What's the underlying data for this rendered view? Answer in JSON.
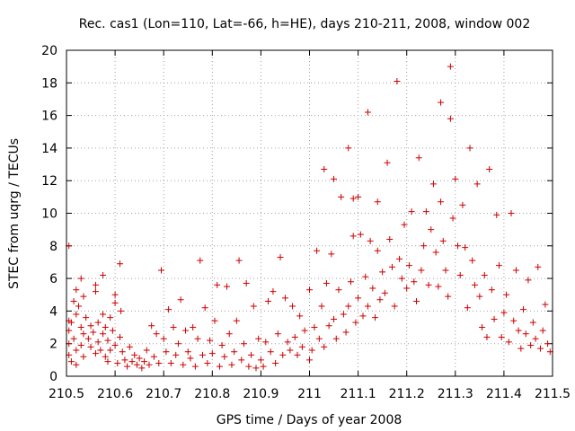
{
  "chart_data": {
    "type": "scatter",
    "title": "Rec. cas1 (Lon=110, Lat=-66, h=HE), days 210-211, 2008, window 002",
    "xlabel": "GPS time / Days of year 2008",
    "ylabel": "STEC from uqrg / TECUs",
    "xlim": [
      210.5,
      211.5
    ],
    "ylim": [
      0,
      20
    ],
    "xticks": [
      210.5,
      210.6,
      210.7,
      210.8,
      210.9,
      211,
      211.1,
      211.2,
      211.3,
      211.4,
      211.5
    ],
    "xtick_labels": [
      "210.5",
      "210.6",
      "210.7",
      "210.8",
      "210.9",
      "211",
      "211.1",
      "211.2",
      "211.3",
      "211.4",
      "211.5"
    ],
    "yticks": [
      0,
      2,
      4,
      6,
      8,
      10,
      12,
      14,
      16,
      18,
      20
    ],
    "ytick_labels": [
      "0",
      "2",
      "4",
      "6",
      "8",
      "10",
      "12",
      "14",
      "16",
      "18",
      "20"
    ],
    "grid": true,
    "marker": "plus",
    "color": "#cc0000",
    "series": [
      {
        "points": [
          [
            210.505,
            8.0
          ],
          [
            210.505,
            3.4
          ],
          [
            210.505,
            2.8
          ],
          [
            210.505,
            2.0
          ],
          [
            210.505,
            1.3
          ],
          [
            210.51,
            3.3
          ],
          [
            210.51,
            0.9
          ],
          [
            210.515,
            4.6
          ],
          [
            210.515,
            2.3
          ],
          [
            210.52,
            5.3
          ],
          [
            210.52,
            3.8
          ],
          [
            210.52,
            1.6
          ],
          [
            210.52,
            0.7
          ],
          [
            210.525,
            4.3
          ],
          [
            210.53,
            6.0
          ],
          [
            210.53,
            3.0
          ],
          [
            210.53,
            1.9
          ],
          [
            210.535,
            4.9
          ],
          [
            210.535,
            2.6
          ],
          [
            210.535,
            1.2
          ],
          [
            210.54,
            3.6
          ],
          [
            210.545,
            2.3
          ],
          [
            210.55,
            3.1
          ],
          [
            210.55,
            1.8
          ],
          [
            210.555,
            2.7
          ],
          [
            210.56,
            5.6
          ],
          [
            210.56,
            5.2
          ],
          [
            210.56,
            1.4
          ],
          [
            210.565,
            2.1
          ],
          [
            210.565,
            3.3
          ],
          [
            210.57,
            1.6
          ],
          [
            210.575,
            6.2
          ],
          [
            210.575,
            3.8
          ],
          [
            210.575,
            2.6
          ],
          [
            210.58,
            1.2
          ],
          [
            210.58,
            3.0
          ],
          [
            210.585,
            2.2
          ],
          [
            210.585,
            0.9
          ],
          [
            210.59,
            3.6
          ],
          [
            210.59,
            1.6
          ],
          [
            210.595,
            2.8
          ],
          [
            210.6,
            5.0
          ],
          [
            210.6,
            4.5
          ],
          [
            210.6,
            1.9
          ],
          [
            210.605,
            0.8
          ],
          [
            210.61,
            2.4
          ],
          [
            210.61,
            6.9
          ],
          [
            210.612,
            4.0
          ],
          [
            210.615,
            1.5
          ],
          [
            210.62,
            1.0
          ],
          [
            210.625,
            0.6
          ],
          [
            210.63,
            1.8
          ],
          [
            210.635,
            0.9
          ],
          [
            210.64,
            1.3
          ],
          [
            210.645,
            0.7
          ],
          [
            210.65,
            1.1
          ],
          [
            210.655,
            0.5
          ],
          [
            210.66,
            0.9
          ],
          [
            210.665,
            1.6
          ],
          [
            210.67,
            0.7
          ],
          [
            210.675,
            3.1
          ],
          [
            210.68,
            1.2
          ],
          [
            210.685,
            2.6
          ],
          [
            210.69,
            0.8
          ],
          [
            210.695,
            6.5
          ],
          [
            210.7,
            2.3
          ],
          [
            210.705,
            1.5
          ],
          [
            210.71,
            4.1
          ],
          [
            210.715,
            0.8
          ],
          [
            210.72,
            3.0
          ],
          [
            210.725,
            1.3
          ],
          [
            210.73,
            2.0
          ],
          [
            210.735,
            4.7
          ],
          [
            210.74,
            0.7
          ],
          [
            210.745,
            2.8
          ],
          [
            210.75,
            1.5
          ],
          [
            210.755,
            1.1
          ],
          [
            210.76,
            3.0
          ],
          [
            210.765,
            0.6
          ],
          [
            210.77,
            2.3
          ],
          [
            210.775,
            7.1
          ],
          [
            210.78,
            1.3
          ],
          [
            210.785,
            4.2
          ],
          [
            210.79,
            0.8
          ],
          [
            210.795,
            2.2
          ],
          [
            210.8,
            1.4
          ],
          [
            210.805,
            3.4
          ],
          [
            210.81,
            5.6
          ],
          [
            210.815,
            0.6
          ],
          [
            210.82,
            1.9
          ],
          [
            210.825,
            1.2
          ],
          [
            210.83,
            5.5
          ],
          [
            210.835,
            2.6
          ],
          [
            210.84,
            0.7
          ],
          [
            210.845,
            1.5
          ],
          [
            210.85,
            3.4
          ],
          [
            210.855,
            7.1
          ],
          [
            210.86,
            1.0
          ],
          [
            210.865,
            2.0
          ],
          [
            210.87,
            5.7
          ],
          [
            210.875,
            0.6
          ],
          [
            210.88,
            1.3
          ],
          [
            210.885,
            4.3
          ],
          [
            210.89,
            0.5
          ],
          [
            210.895,
            2.3
          ],
          [
            210.9,
            1.0
          ],
          [
            210.905,
            0.6
          ],
          [
            210.91,
            2.1
          ],
          [
            210.915,
            4.6
          ],
          [
            210.92,
            1.5
          ],
          [
            210.925,
            5.2
          ],
          [
            210.93,
            0.8
          ],
          [
            210.935,
            2.6
          ],
          [
            210.94,
            7.3
          ],
          [
            210.945,
            1.3
          ],
          [
            210.95,
            4.8
          ],
          [
            210.955,
            2.1
          ],
          [
            210.96,
            1.6
          ],
          [
            210.965,
            4.3
          ],
          [
            210.97,
            2.4
          ],
          [
            210.975,
            1.3
          ],
          [
            210.98,
            3.7
          ],
          [
            210.985,
            1.8
          ],
          [
            210.99,
            2.8
          ],
          [
            211.0,
            5.3
          ],
          [
            211.0,
            1.0
          ],
          [
            211.005,
            1.6
          ],
          [
            211.01,
            3.0
          ],
          [
            211.015,
            7.7
          ],
          [
            211.02,
            2.3
          ],
          [
            211.025,
            4.3
          ],
          [
            211.03,
            12.7
          ],
          [
            211.03,
            1.8
          ],
          [
            211.035,
            5.7
          ],
          [
            211.04,
            3.1
          ],
          [
            211.045,
            7.5
          ],
          [
            211.05,
            12.1
          ],
          [
            211.05,
            3.5
          ],
          [
            211.055,
            2.3
          ],
          [
            211.06,
            5.3
          ],
          [
            211.065,
            11.0
          ],
          [
            211.07,
            3.8
          ],
          [
            211.075,
            2.7
          ],
          [
            211.08,
            14.0
          ],
          [
            211.08,
            4.3
          ],
          [
            211.085,
            5.8
          ],
          [
            211.09,
            10.9
          ],
          [
            211.09,
            8.6
          ],
          [
            211.095,
            3.3
          ],
          [
            211.1,
            11.0
          ],
          [
            211.1,
            4.8
          ],
          [
            211.105,
            8.7
          ],
          [
            211.11,
            3.7
          ],
          [
            211.115,
            6.1
          ],
          [
            211.12,
            16.2
          ],
          [
            211.12,
            4.3
          ],
          [
            211.125,
            8.3
          ],
          [
            211.13,
            5.4
          ],
          [
            211.135,
            3.6
          ],
          [
            211.14,
            10.7
          ],
          [
            211.14,
            7.7
          ],
          [
            211.145,
            4.7
          ],
          [
            211.15,
            6.4
          ],
          [
            211.155,
            5.1
          ],
          [
            211.16,
            13.1
          ],
          [
            211.165,
            8.4
          ],
          [
            211.17,
            6.7
          ],
          [
            211.175,
            4.3
          ],
          [
            211.18,
            18.1
          ],
          [
            211.185,
            7.2
          ],
          [
            211.19,
            6.0
          ],
          [
            211.195,
            9.3
          ],
          [
            211.2,
            5.4
          ],
          [
            211.205,
            6.8
          ],
          [
            211.21,
            10.1
          ],
          [
            211.215,
            5.8
          ],
          [
            211.22,
            4.6
          ],
          [
            211.225,
            13.4
          ],
          [
            211.23,
            6.5
          ],
          [
            211.235,
            8.0
          ],
          [
            211.24,
            10.1
          ],
          [
            211.245,
            5.6
          ],
          [
            211.25,
            9.0
          ],
          [
            211.255,
            11.8
          ],
          [
            211.26,
            7.6
          ],
          [
            211.265,
            5.5
          ],
          [
            211.27,
            16.8
          ],
          [
            211.27,
            10.7
          ],
          [
            211.275,
            8.3
          ],
          [
            211.28,
            6.5
          ],
          [
            211.285,
            4.9
          ],
          [
            211.29,
            19.0
          ],
          [
            211.29,
            15.8
          ],
          [
            211.295,
            9.7
          ],
          [
            211.3,
            12.1
          ],
          [
            211.305,
            8.0
          ],
          [
            211.31,
            6.2
          ],
          [
            211.315,
            10.5
          ],
          [
            211.32,
            7.9
          ],
          [
            211.325,
            4.2
          ],
          [
            211.33,
            14.0
          ],
          [
            211.335,
            7.1
          ],
          [
            211.34,
            5.6
          ],
          [
            211.345,
            11.8
          ],
          [
            211.35,
            4.9
          ],
          [
            211.355,
            3.0
          ],
          [
            211.36,
            6.2
          ],
          [
            211.365,
            2.4
          ],
          [
            211.37,
            12.7
          ],
          [
            211.375,
            5.3
          ],
          [
            211.38,
            3.5
          ],
          [
            211.385,
            9.9
          ],
          [
            211.39,
            6.8
          ],
          [
            211.395,
            2.4
          ],
          [
            211.4,
            3.9
          ],
          [
            211.405,
            5.0
          ],
          [
            211.41,
            2.1
          ],
          [
            211.415,
            10.0
          ],
          [
            211.42,
            3.4
          ],
          [
            211.425,
            6.5
          ],
          [
            211.43,
            2.8
          ],
          [
            211.435,
            1.7
          ],
          [
            211.44,
            4.1
          ],
          [
            211.445,
            2.6
          ],
          [
            211.45,
            5.9
          ],
          [
            211.455,
            1.9
          ],
          [
            211.46,
            3.3
          ],
          [
            211.465,
            2.3
          ],
          [
            211.47,
            6.7
          ],
          [
            211.475,
            1.7
          ],
          [
            211.48,
            2.8
          ],
          [
            211.485,
            4.4
          ],
          [
            211.49,
            2.0
          ],
          [
            211.495,
            1.5
          ]
        ]
      }
    ]
  }
}
